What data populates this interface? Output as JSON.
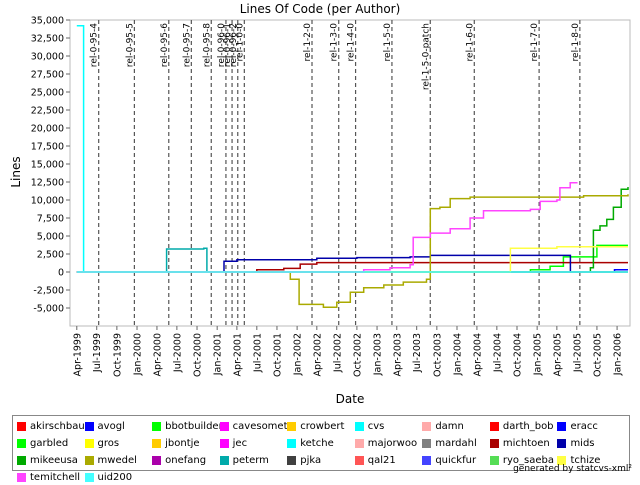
{
  "chart_data": {
    "type": "line",
    "title": "Lines Of Code (per Author)",
    "xlabel": "Date",
    "ylabel": "Lines",
    "xlim": [
      "1999-03-01",
      "2006-03-01"
    ],
    "ylim": [
      -7500,
      35000
    ],
    "y_ticks": [
      -5000,
      -2500,
      0,
      2500,
      5000,
      7500,
      10000,
      12500,
      15000,
      17500,
      20000,
      22500,
      25000,
      27500,
      30000,
      32500,
      35000
    ],
    "y_tick_labels": [
      "-5,000",
      "-2,500",
      "0",
      "2,500",
      "5,000",
      "7,500",
      "10,000",
      "12,500",
      "15,000",
      "17,500",
      "20,000",
      "22,500",
      "25,000",
      "27,500",
      "30,000",
      "32,500",
      "35,000"
    ],
    "x_ticks": [
      {
        "label": "Apr-1999",
        "date": "1999-04-01"
      },
      {
        "label": "Jul-1999",
        "date": "1999-07-01"
      },
      {
        "label": "Oct-1999",
        "date": "1999-10-01"
      },
      {
        "label": "Jan-2000",
        "date": "2000-01-01"
      },
      {
        "label": "Apr-2000",
        "date": "2000-04-01"
      },
      {
        "label": "Jul-2000",
        "date": "2000-07-01"
      },
      {
        "label": "Oct-2000",
        "date": "2000-10-01"
      },
      {
        "label": "Jan-2001",
        "date": "2001-01-01"
      },
      {
        "label": "Apr-2001",
        "date": "2001-04-01"
      },
      {
        "label": "Jul-2001",
        "date": "2001-07-01"
      },
      {
        "label": "Oct-2001",
        "date": "2001-10-01"
      },
      {
        "label": "Jan-2002",
        "date": "2002-01-01"
      },
      {
        "label": "Apr-2002",
        "date": "2002-04-01"
      },
      {
        "label": "Jul-2002",
        "date": "2002-07-01"
      },
      {
        "label": "Oct-2002",
        "date": "2002-10-01"
      },
      {
        "label": "Jan-2003",
        "date": "2003-01-01"
      },
      {
        "label": "Apr-2003",
        "date": "2003-04-01"
      },
      {
        "label": "Jul-2003",
        "date": "2003-07-01"
      },
      {
        "label": "Oct-2003",
        "date": "2003-10-01"
      },
      {
        "label": "Jan-2004",
        "date": "2004-01-01"
      },
      {
        "label": "Apr-2004",
        "date": "2004-04-01"
      },
      {
        "label": "Jul-2004",
        "date": "2004-07-01"
      },
      {
        "label": "Oct-2004",
        "date": "2004-10-01"
      },
      {
        "label": "Jan-2005",
        "date": "2005-01-01"
      },
      {
        "label": "Apr-2005",
        "date": "2005-04-01"
      },
      {
        "label": "Jul-2005",
        "date": "2005-07-01"
      },
      {
        "label": "Oct-2005",
        "date": "2005-10-01"
      },
      {
        "label": "Jan-2006",
        "date": "2006-01-01"
      }
    ],
    "releases": [
      {
        "label": "rel-0-95-4",
        "date": "1999-07-10"
      },
      {
        "label": "rel-0-95-5",
        "date": "1999-12-20"
      },
      {
        "label": "rel-0-95-6",
        "date": "2000-05-25"
      },
      {
        "label": "rel-0-95-7",
        "date": "2000-09-05"
      },
      {
        "label": "rel-0-95-8",
        "date": "2000-12-05"
      },
      {
        "label": "rel-0-96-0",
        "date": "2001-02-10"
      },
      {
        "label": "rel-0-96-1",
        "date": "2001-03-10"
      },
      {
        "label": "rel-0-96-2",
        "date": "2001-04-05"
      },
      {
        "label": "rel-1-0-0",
        "date": "2001-05-05"
      },
      {
        "label": "rel-1-2-0",
        "date": "2002-03-10"
      },
      {
        "label": "rel-1-3-0",
        "date": "2002-07-10"
      },
      {
        "label": "rel-1-4-0",
        "date": "2002-09-25"
      },
      {
        "label": "rel-1-5-0",
        "date": "2003-03-10"
      },
      {
        "label": "rel-1-5-0-patch",
        "date": "2003-09-01"
      },
      {
        "label": "rel-1-6-0",
        "date": "2004-03-20"
      },
      {
        "label": "rel-1-7-0",
        "date": "2005-01-10"
      },
      {
        "label": "rel-1-8-0",
        "date": "2005-07-15"
      }
    ],
    "series": [
      {
        "name": "akirschbaum",
        "color": "#ff0000",
        "points": [
          [
            "1999-04-01",
            0
          ],
          [
            "2006-02-20",
            0
          ]
        ]
      },
      {
        "name": "avogl",
        "color": "#0000ff",
        "points": [
          [
            "1999-04-01",
            0
          ],
          [
            "2005-12-01",
            0
          ],
          [
            "2005-12-20",
            300
          ],
          [
            "2006-02-20",
            300
          ]
        ]
      },
      {
        "name": "bbotbuilder",
        "color": "#00ff00",
        "points": [
          [
            "1999-04-01",
            0
          ],
          [
            "2006-02-20",
            0
          ]
        ]
      },
      {
        "name": "cavesomething",
        "color": "#ff00ff",
        "points": [
          [
            "1999-04-01",
            0
          ],
          [
            "2006-02-20",
            0
          ]
        ]
      },
      {
        "name": "crowbert",
        "color": "#ffcc00",
        "points": [
          [
            "1999-04-01",
            0
          ],
          [
            "2006-02-20",
            0
          ]
        ]
      },
      {
        "name": "cvs",
        "color": "#00ffff",
        "points": [
          [
            "1999-04-01",
            34200
          ],
          [
            "1999-05-01",
            34200
          ],
          [
            "1999-05-02",
            0
          ],
          [
            "2006-02-20",
            0
          ]
        ]
      },
      {
        "name": "damn",
        "color": "#ffaaaa",
        "points": [
          [
            "1999-04-01",
            0
          ],
          [
            "2006-02-20",
            0
          ]
        ]
      },
      {
        "name": "darth_bob",
        "color": "#ff0000",
        "points": [
          [
            "1999-04-01",
            0
          ],
          [
            "2006-02-20",
            0
          ]
        ]
      },
      {
        "name": "eracc",
        "color": "#0000ff",
        "points": [
          [
            "1999-04-01",
            0
          ],
          [
            "2006-02-20",
            0
          ]
        ]
      },
      {
        "name": "garbled",
        "color": "#00ff00",
        "points": [
          [
            "1999-04-01",
            0
          ],
          [
            "2004-06-01",
            0
          ],
          [
            "2004-12-01",
            300
          ],
          [
            "2005-03-01",
            800
          ],
          [
            "2005-05-01",
            2100
          ],
          [
            "2005-08-01",
            2100
          ],
          [
            "2005-10-01",
            3700
          ],
          [
            "2006-02-20",
            3700
          ]
        ]
      },
      {
        "name": "gros",
        "color": "#ffff00",
        "points": [
          [
            "1999-04-01",
            0
          ],
          [
            "2006-02-20",
            0
          ]
        ]
      },
      {
        "name": "jbontje",
        "color": "#ffcc00",
        "points": [
          [
            "1999-04-01",
            0
          ],
          [
            "2006-02-20",
            0
          ]
        ]
      },
      {
        "name": "jec",
        "color": "#ff00ff",
        "points": [
          [
            "1999-04-01",
            0
          ],
          [
            "2006-02-20",
            0
          ]
        ]
      },
      {
        "name": "ketche",
        "color": "#00ffff",
        "points": [
          [
            "1999-04-01",
            0
          ],
          [
            "2006-02-20",
            0
          ]
        ]
      },
      {
        "name": "majorwoo",
        "color": "#ffaaaa",
        "points": [
          [
            "1999-04-01",
            0
          ],
          [
            "2006-02-20",
            0
          ]
        ]
      },
      {
        "name": "mardahl",
        "color": "#808080",
        "points": [
          [
            "1999-04-01",
            0
          ],
          [
            "2006-02-20",
            0
          ]
        ]
      },
      {
        "name": "michtoen",
        "color": "#aa0000",
        "points": [
          [
            "1999-04-01",
            0
          ],
          [
            "2001-06-01",
            0
          ],
          [
            "2001-07-01",
            300
          ],
          [
            "2001-11-01",
            500
          ],
          [
            "2002-01-15",
            1100
          ],
          [
            "2002-04-01",
            1300
          ],
          [
            "2002-09-01",
            1300
          ],
          [
            "2006-02-20",
            1300
          ]
        ]
      },
      {
        "name": "mids",
        "color": "#0000aa",
        "points": [
          [
            "1999-04-01",
            0
          ],
          [
            "2000-12-01",
            0
          ],
          [
            "2001-02-01",
            1500
          ],
          [
            "2001-04-01",
            1700
          ],
          [
            "2001-10-01",
            1700
          ],
          [
            "2002-04-01",
            1900
          ],
          [
            "2002-10-01",
            2000
          ],
          [
            "2003-06-01",
            2100
          ],
          [
            "2003-09-01",
            2300
          ],
          [
            "2005-06-01",
            2300
          ],
          [
            "2005-06-02",
            0
          ],
          [
            "2006-02-20",
            0
          ]
        ]
      },
      {
        "name": "mikeeusa",
        "color": "#00aa00",
        "points": [
          [
            "1999-04-01",
            0
          ],
          [
            "2005-07-01",
            0
          ],
          [
            "2005-09-01",
            600
          ],
          [
            "2005-09-15",
            5800
          ],
          [
            "2005-10-15",
            6400
          ],
          [
            "2005-11-15",
            7300
          ],
          [
            "2005-12-15",
            9000
          ],
          [
            "2006-01-20",
            11500
          ],
          [
            "2006-02-20",
            11800
          ]
        ]
      },
      {
        "name": "mwedel",
        "color": "#aaaa00",
        "points": [
          [
            "1999-04-01",
            0
          ],
          [
            "2001-06-01",
            0
          ],
          [
            "2001-12-01",
            -1000
          ],
          [
            "2002-01-10",
            -4500
          ],
          [
            "2002-05-01",
            -4900
          ],
          [
            "2002-07-01",
            -4200
          ],
          [
            "2002-09-01",
            -2800
          ],
          [
            "2002-11-01",
            -2200
          ],
          [
            "2003-02-01",
            -1800
          ],
          [
            "2003-05-01",
            -1400
          ],
          [
            "2003-08-15",
            -1000
          ],
          [
            "2003-09-01",
            8800
          ],
          [
            "2003-10-15",
            9000
          ],
          [
            "2003-12-01",
            10200
          ],
          [
            "2004-03-01",
            10400
          ],
          [
            "2005-08-01",
            10600
          ],
          [
            "2006-02-20",
            10800
          ]
        ]
      },
      {
        "name": "onefang",
        "color": "#aa00aa",
        "points": [
          [
            "1999-04-01",
            0
          ],
          [
            "2006-02-20",
            0
          ]
        ]
      },
      {
        "name": "peterm",
        "color": "#00aaaa",
        "points": [
          [
            "1999-04-01",
            0
          ],
          [
            "2000-05-01",
            0
          ],
          [
            "2000-05-15",
            3200
          ],
          [
            "2000-11-01",
            3300
          ],
          [
            "2000-11-15",
            0
          ],
          [
            "2006-02-20",
            0
          ]
        ]
      },
      {
        "name": "pjka",
        "color": "#404040",
        "points": [
          [
            "1999-04-01",
            0
          ],
          [
            "2006-02-20",
            0
          ]
        ]
      },
      {
        "name": "qal21",
        "color": "#ff5555",
        "points": [
          [
            "1999-04-01",
            0
          ],
          [
            "2006-02-20",
            0
          ]
        ]
      },
      {
        "name": "quickfur",
        "color": "#4444ff",
        "points": [
          [
            "1999-04-01",
            0
          ],
          [
            "2006-02-20",
            0
          ]
        ]
      },
      {
        "name": "ryo_saeba",
        "color": "#55dd55",
        "points": [
          [
            "1999-04-01",
            0
          ],
          [
            "2006-02-20",
            0
          ]
        ]
      },
      {
        "name": "tchize",
        "color": "#ffff44",
        "points": [
          [
            "1999-04-01",
            0
          ],
          [
            "2004-08-01",
            0
          ],
          [
            "2004-09-01",
            3300
          ],
          [
            "2005-04-01",
            3500
          ],
          [
            "2006-02-20",
            3500
          ]
        ]
      },
      {
        "name": "temitchell",
        "color": "#ff44ff",
        "points": [
          [
            "1999-04-01",
            0
          ],
          [
            "2002-08-01",
            0
          ],
          [
            "2002-11-01",
            300
          ],
          [
            "2003-03-01",
            600
          ],
          [
            "2003-06-01",
            1000
          ],
          [
            "2003-06-15",
            4800
          ],
          [
            "2003-09-01",
            5400
          ],
          [
            "2003-12-01",
            6000
          ],
          [
            "2004-03-01",
            7500
          ],
          [
            "2004-05-01",
            8500
          ],
          [
            "2004-12-01",
            8700
          ],
          [
            "2005-01-15",
            9800
          ],
          [
            "2005-04-01",
            10000
          ],
          [
            "2005-04-15",
            11700
          ],
          [
            "2005-06-01",
            12400
          ],
          [
            "2005-07-01",
            12500
          ]
        ]
      },
      {
        "name": "uid200",
        "color": "#44ffff",
        "points": [
          [
            "1999-04-01",
            0
          ],
          [
            "2006-02-20",
            0
          ]
        ]
      }
    ]
  },
  "footer": {
    "credit": "generated by statcvs-xml²"
  }
}
